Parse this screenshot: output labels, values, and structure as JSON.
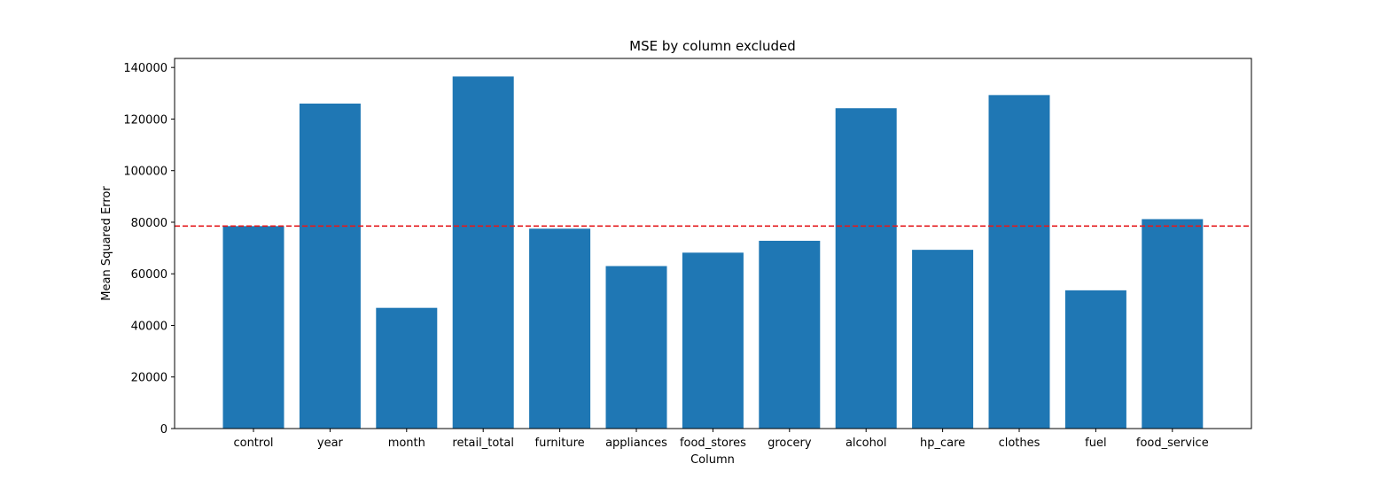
{
  "chart_data": {
    "type": "bar",
    "title": "MSE by column excluded",
    "xlabel": "Column",
    "ylabel": "Mean Squared Error",
    "categories": [
      "control",
      "year",
      "month",
      "retail_total",
      "furniture",
      "appliances",
      "food_stores",
      "grocery",
      "alcohol",
      "hp_care",
      "clothes",
      "fuel",
      "food_service"
    ],
    "values": [
      78500,
      126000,
      46800,
      136500,
      77500,
      63000,
      68200,
      72800,
      124200,
      69300,
      129300,
      53600,
      81200
    ],
    "yticks": [
      0,
      20000,
      40000,
      60000,
      80000,
      100000,
      120000,
      140000
    ],
    "ylim": [
      0,
      143500
    ],
    "reference_line": {
      "value": 78500,
      "style": "dashed"
    },
    "grid": false,
    "colors": {
      "bar": "#1f77b4",
      "reference_line": "#e41a1c"
    }
  }
}
